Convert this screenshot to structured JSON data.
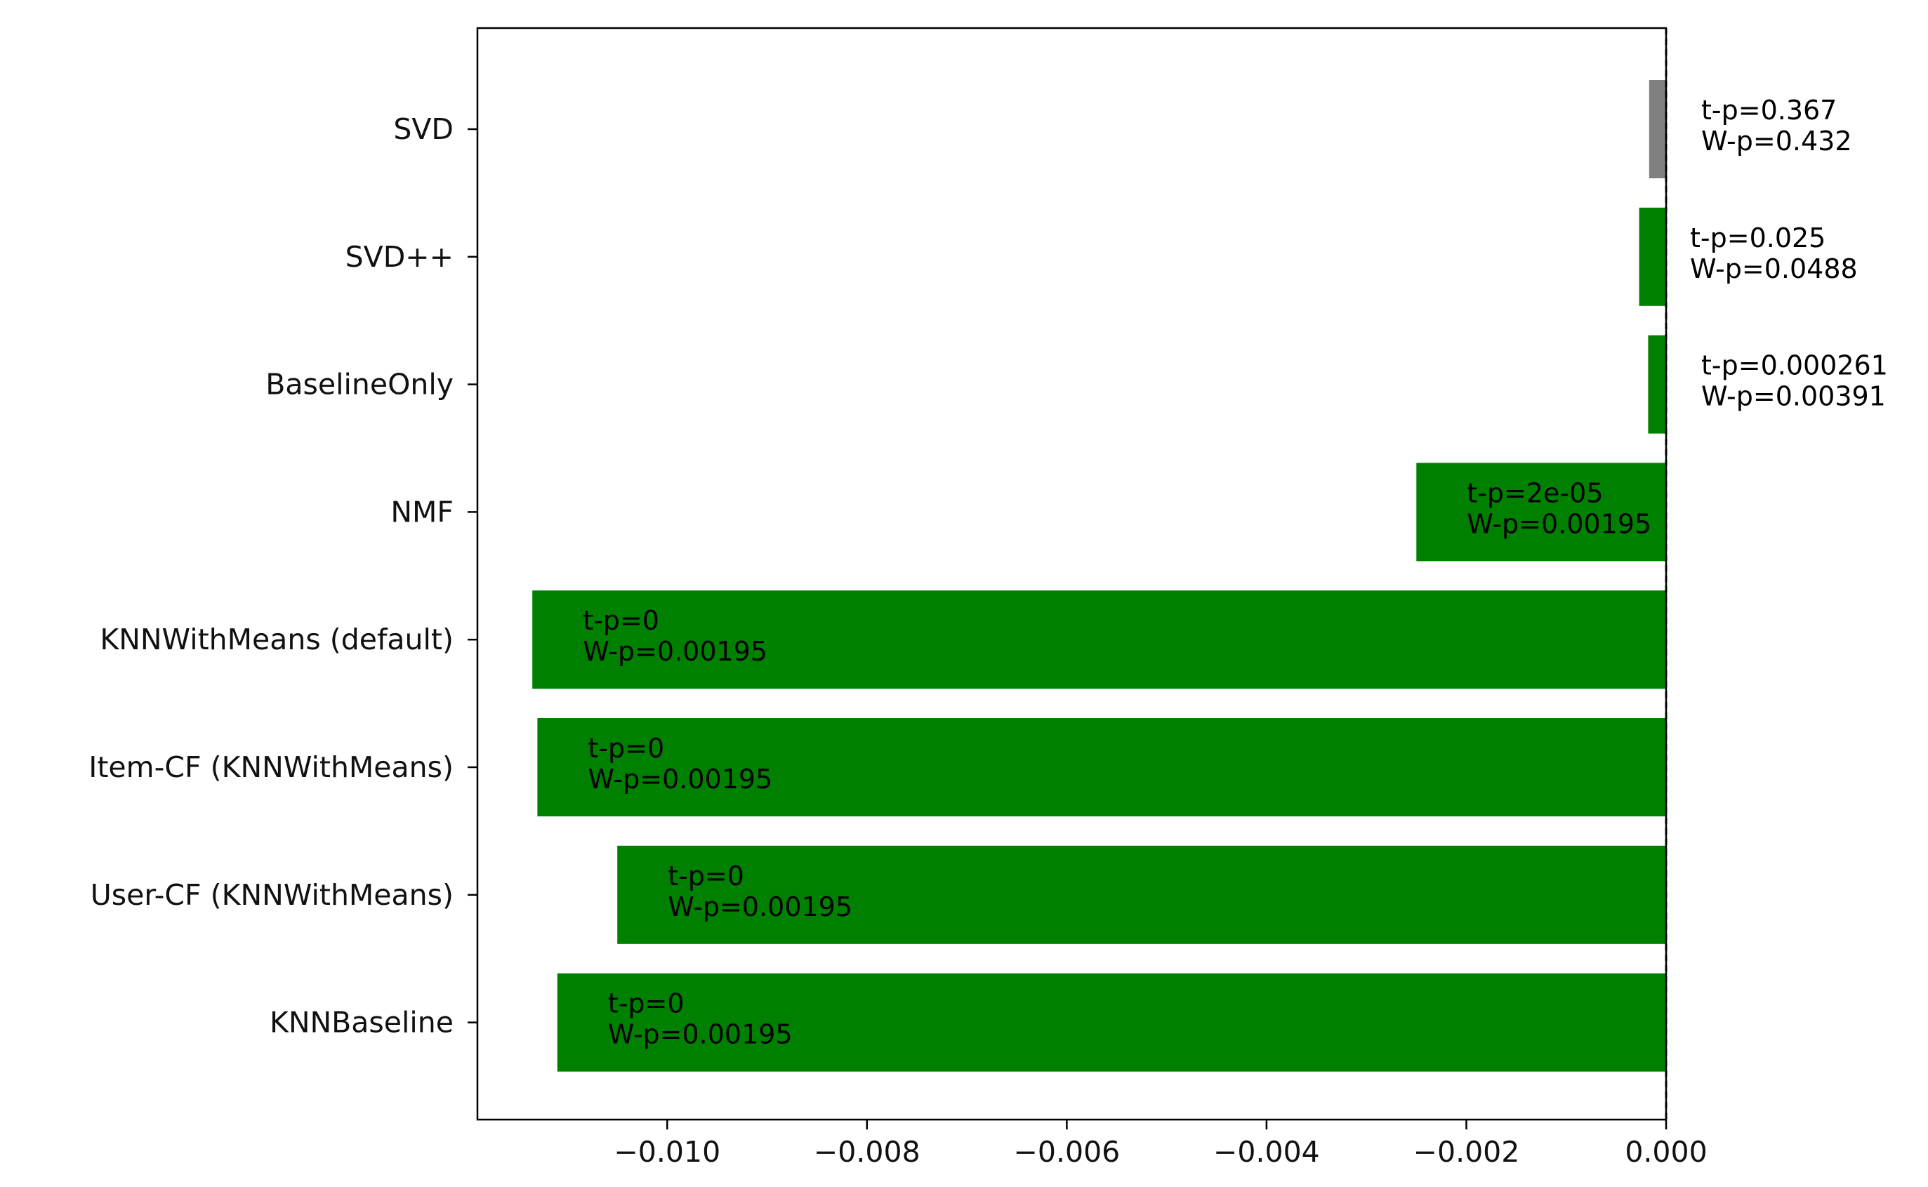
{
  "chart_data": {
    "type": "bar",
    "orientation": "horizontal",
    "title": "",
    "xlabel": "",
    "ylabel": "",
    "xlim": [
      -0.0119,
      0.0
    ],
    "x_ticks": [
      -0.01,
      -0.008,
      -0.006,
      -0.004,
      -0.002,
      0.0
    ],
    "x_tick_labels": [
      "−0.010",
      "−0.008",
      "−0.006",
      "−0.004",
      "−0.002",
      "0.000"
    ],
    "reference_line": {
      "x": 0.0,
      "style": "dashed",
      "color": "#000000"
    },
    "grid": false,
    "legend": "none",
    "categories": [
      "SVD",
      "SVD++",
      "BaselineOnly",
      "NMF",
      "KNNWithMeans (default)",
      "Item-CF (KNNWithMeans)",
      "User-CF (KNNWithMeans)",
      "KNNBaseline"
    ],
    "values": [
      -0.00017,
      -0.00027,
      -0.00018,
      -0.0025,
      -0.01135,
      -0.0113,
      -0.0105,
      -0.0111
    ],
    "bar_colors": [
      "#808080",
      "#008000",
      "#008000",
      "#008000",
      "#008000",
      "#008000",
      "#008000",
      "#008000"
    ],
    "annotations": [
      {
        "t": "t-p=0.367",
        "w": "W-p=0.432",
        "placement": "outside"
      },
      {
        "t": "t-p=0.025",
        "w": "W-p=0.0488",
        "placement": "outside"
      },
      {
        "t": "t-p=0.000261",
        "w": "W-p=0.00391",
        "placement": "outside"
      },
      {
        "t": "t-p=2e-05",
        "w": "W-p=0.00195",
        "placement": "inside"
      },
      {
        "t": "t-p=0",
        "w": "W-p=0.00195",
        "placement": "inside"
      },
      {
        "t": "t-p=0",
        "w": "W-p=0.00195",
        "placement": "inside"
      },
      {
        "t": "t-p=0",
        "w": "W-p=0.00195",
        "placement": "inside"
      },
      {
        "t": "t-p=0",
        "w": "W-p=0.00195",
        "placement": "inside"
      }
    ]
  }
}
